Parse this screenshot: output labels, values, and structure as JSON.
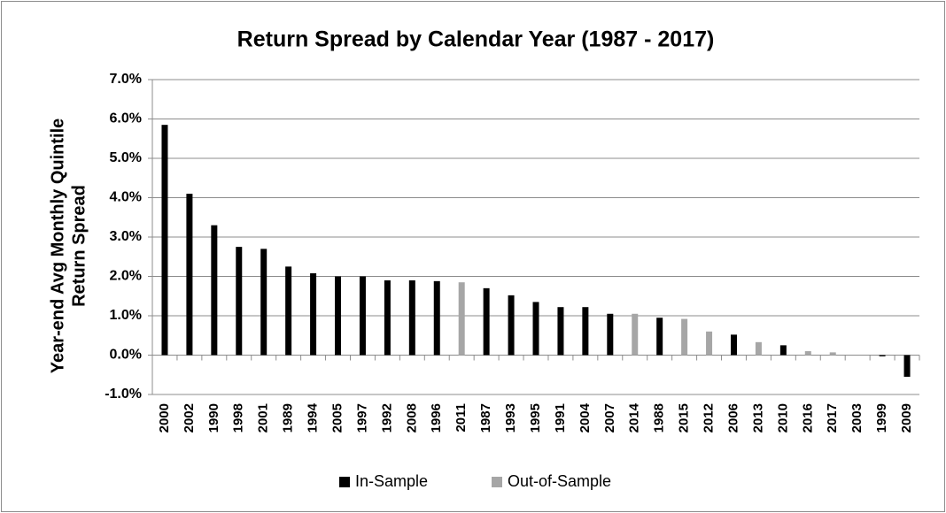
{
  "chart_data": {
    "type": "bar",
    "title": "Return Spread by Calendar Year (1987 - 2017)",
    "y_label": [
      "Year-end Avg Monthly Quintile",
      "Return Spread"
    ],
    "categories": [
      "2000",
      "2002",
      "1990",
      "1998",
      "2001",
      "1989",
      "1994",
      "2005",
      "1997",
      "1992",
      "2008",
      "1996",
      "2011",
      "1987",
      "1993",
      "1995",
      "1991",
      "2004",
      "2007",
      "2014",
      "1988",
      "2015",
      "2012",
      "2006",
      "2013",
      "2010",
      "2016",
      "2017",
      "2003",
      "1999",
      "2009"
    ],
    "series": [
      {
        "name": "In-Sample",
        "color": "#000000",
        "values": [
          5.85,
          4.1,
          3.3,
          2.75,
          2.7,
          2.25,
          2.08,
          2.0,
          2.0,
          1.9,
          1.9,
          1.88,
          null,
          1.7,
          1.52,
          1.35,
          1.22,
          1.22,
          1.05,
          null,
          0.95,
          null,
          null,
          0.52,
          null,
          0.25,
          null,
          null,
          0.0,
          -0.03,
          -0.55
        ]
      },
      {
        "name": "Out-of-Sample",
        "color": "#a6a6a6",
        "values": [
          null,
          null,
          null,
          null,
          null,
          null,
          null,
          null,
          null,
          null,
          null,
          null,
          1.85,
          null,
          null,
          null,
          null,
          null,
          null,
          1.05,
          null,
          0.92,
          0.6,
          null,
          0.33,
          null,
          0.1,
          0.07,
          null,
          null,
          null
        ]
      }
    ],
    "ylim": [
      -1,
      7
    ],
    "yticks": [
      {
        "value": -1,
        "label": "-1.0%"
      },
      {
        "value": 0,
        "label": "0.0%"
      },
      {
        "value": 1,
        "label": "1.0%"
      },
      {
        "value": 2,
        "label": "2.0%"
      },
      {
        "value": 3,
        "label": "3.0%"
      },
      {
        "value": 4,
        "label": "4.0%"
      },
      {
        "value": 5,
        "label": "5.0%"
      },
      {
        "value": 6,
        "label": "6.0%"
      },
      {
        "value": 7,
        "label": "7.0%"
      }
    ],
    "grid": true,
    "legend": "bottom"
  }
}
